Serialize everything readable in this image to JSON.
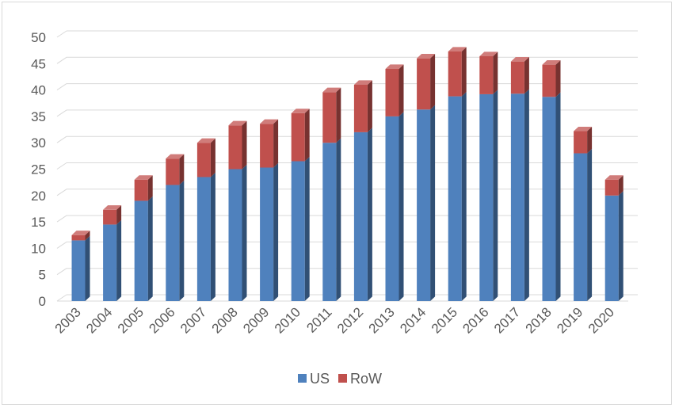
{
  "chart_data": {
    "type": "bar",
    "stacked": true,
    "three_d": true,
    "categories": [
      "2003",
      "2004",
      "2005",
      "2006",
      "2007",
      "2008",
      "2009",
      "2010",
      "2011",
      "2012",
      "2013",
      "2014",
      "2015",
      "2016",
      "2017",
      "2018",
      "2019",
      "2020"
    ],
    "series": [
      {
        "name": "US",
        "color": "#4f81bd",
        "values": [
          11.5,
          14.5,
          19,
          22,
          23.5,
          25,
          25.3,
          26.5,
          30,
          32,
          35,
          36.3,
          38.8,
          39.2,
          39.3,
          38.7,
          28,
          20
        ]
      },
      {
        "name": "RoW",
        "color": "#c0504d",
        "values": [
          1,
          2.8,
          4,
          5,
          6.5,
          8.3,
          8.3,
          9.1,
          9.6,
          9,
          9,
          9.7,
          8.5,
          7.2,
          6.1,
          6.1,
          4.2,
          3
        ]
      }
    ],
    "y_ticks": [
      "0",
      "5",
      "10",
      "15",
      "20",
      "25",
      "30",
      "35",
      "40",
      "45",
      "50"
    ],
    "ylim": [
      0,
      50
    ],
    "grid": true,
    "legend_position": "bottom",
    "title": "",
    "xlabel": "",
    "ylabel": ""
  }
}
